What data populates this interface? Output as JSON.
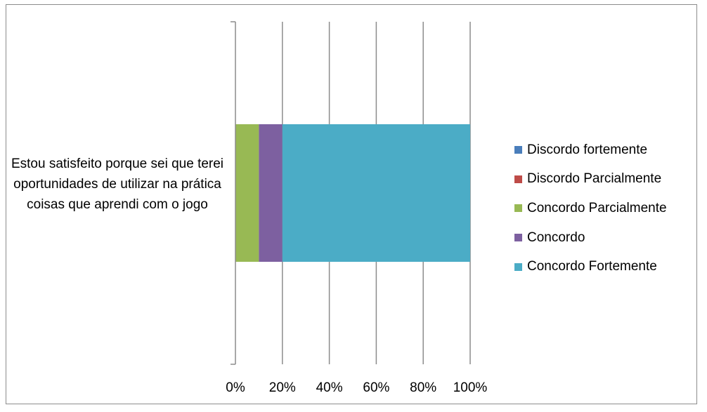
{
  "chart_data": {
    "type": "bar",
    "orientation": "horizontal",
    "stacked": "percent",
    "categories": [
      "Estou satisfeito porque sei que terei oportunidades de utilizar na prática coisas que aprendi com o jogo"
    ],
    "series": [
      {
        "name": "Discordo fortemente",
        "color": "#4a7ebb",
        "values": [
          0
        ]
      },
      {
        "name": "Discordo Parcialmente",
        "color": "#be4b48",
        "values": [
          0
        ]
      },
      {
        "name": "Concordo Parcialmente",
        "color": "#98b954",
        "values": [
          10
        ]
      },
      {
        "name": "Concordo",
        "color": "#7d60a0",
        "values": [
          10
        ]
      },
      {
        "name": "Concordo Fortemente",
        "color": "#4bacc6",
        "values": [
          80
        ]
      }
    ],
    "x_ticks": [
      "0%",
      "20%",
      "40%",
      "60%",
      "80%",
      "100%"
    ],
    "xlim": [
      0,
      100
    ],
    "grid": "vertical",
    "legend": "right",
    "title": "",
    "xlabel": "",
    "ylabel": ""
  }
}
